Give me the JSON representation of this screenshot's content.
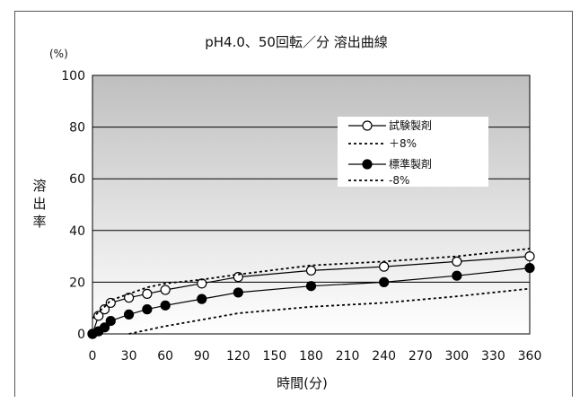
{
  "chart_data": {
    "type": "line",
    "title": "pH4.0、50回転／分  溶出曲線",
    "y_unit": "(%)",
    "ylabel": "溶出率",
    "xlabel": "時間(分)",
    "xlim": [
      0,
      360
    ],
    "ylim": [
      0,
      100
    ],
    "x_ticks": [
      0,
      30,
      60,
      90,
      120,
      150,
      180,
      210,
      240,
      270,
      300,
      330,
      360
    ],
    "y_ticks": [
      0,
      20,
      40,
      60,
      80,
      100
    ],
    "grid": "horizontal",
    "legend_position": "right",
    "series": [
      {
        "name": "試験製剤",
        "style": "solid-open-circle",
        "color": "#000000",
        "x": [
          0,
          5,
          10,
          15,
          30,
          45,
          60,
          90,
          120,
          180,
          240,
          300,
          360
        ],
        "y": [
          0,
          7,
          9.5,
          12,
          14,
          15.5,
          17,
          19.5,
          22,
          24.5,
          26,
          28,
          30
        ]
      },
      {
        "name": "＋8%",
        "style": "dotted",
        "color": "#000000",
        "x": [
          0,
          5,
          10,
          15,
          30,
          45,
          60,
          90,
          120,
          180,
          240,
          300,
          360
        ],
        "y": [
          6,
          8.5,
          10.5,
          13,
          15.5,
          18,
          19.5,
          21,
          23,
          26.5,
          28,
          30,
          33
        ]
      },
      {
        "name": "標準製剤",
        "style": "solid-filled-circle",
        "color": "#000000",
        "x": [
          0,
          5,
          10,
          15,
          30,
          45,
          60,
          90,
          120,
          180,
          240,
          300,
          360
        ],
        "y": [
          0,
          1,
          2.5,
          5,
          7.5,
          9.5,
          11,
          13.5,
          16,
          18.5,
          20,
          22.5,
          25.5
        ]
      },
      {
        "name": "-8%",
        "style": "dotted",
        "color": "#000000",
        "x": [
          30,
          60,
          90,
          120,
          180,
          240,
          300,
          360
        ],
        "y": [
          0,
          3,
          5.5,
          8,
          10.5,
          12,
          14.5,
          17.5
        ]
      }
    ]
  }
}
